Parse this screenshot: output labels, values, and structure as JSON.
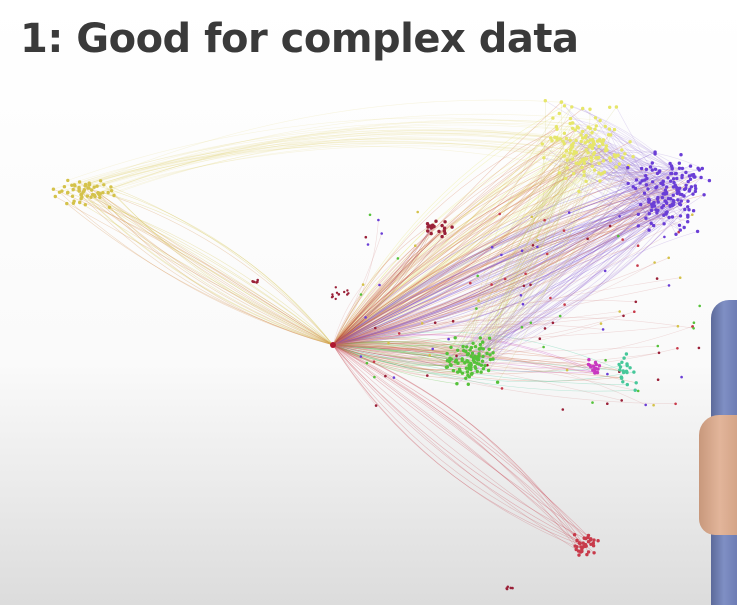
{
  "slide": {
    "title": "1: Good for complex data"
  },
  "graph": {
    "clusters": [
      {
        "name": "yellow-left",
        "color": "#d4c24a"
      },
      {
        "name": "yellow-top",
        "color": "#e6e66a"
      },
      {
        "name": "purple",
        "color": "#6a3ed6"
      },
      {
        "name": "green",
        "color": "#55c23a"
      },
      {
        "name": "red-bottom",
        "color": "#c83a4a"
      },
      {
        "name": "magenta",
        "color": "#c838c0"
      },
      {
        "name": "teal",
        "color": "#46c89a"
      },
      {
        "name": "dark-red",
        "color": "#9a2038"
      }
    ]
  }
}
